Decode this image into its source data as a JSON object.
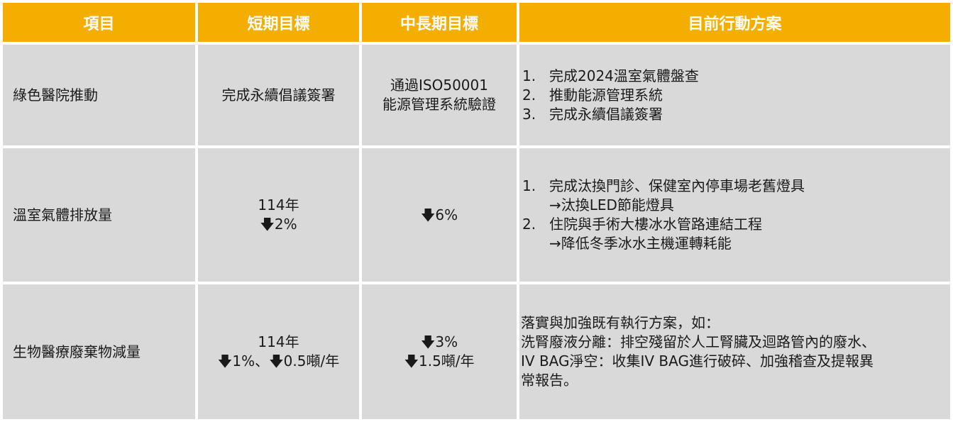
{
  "headers": [
    "項目",
    "短期目標",
    "中長期目標",
    "目前行動方案"
  ],
  "rows": [
    {
      "item": "綠色醫院推動",
      "short": [
        "完成永續倡議簽署"
      ],
      "mid": [
        "通過ISO50001",
        "能源管理系統驗證"
      ],
      "actions": [
        {
          "num": "1.",
          "text": "完成2024溫室氣體盤查"
        },
        {
          "num": "2.",
          "text": "推動能源管理系統"
        },
        {
          "num": "3.",
          "text": "完成永續倡議簽署"
        }
      ]
    },
    {
      "item": "溫室氣體排放量",
      "short": [
        "114年",
        "🡇2%"
      ],
      "mid": [
        "🡇6%"
      ],
      "actions": [
        {
          "num": "1.",
          "text": "完成汰換門診、保健室內停車場老舊燈具",
          "sub": "→汰換LED節能燈具"
        },
        {
          "num": "2.",
          "text": "住院與手術大樓冰水管路連結工程",
          "sub": "→降低冬季冰水主機運轉耗能"
        }
      ]
    },
    {
      "item": "生物醫療廢棄物減量",
      "short": [
        "114年",
        "🡇1%、🡇0.5噸/年"
      ],
      "mid": [
        "🡇3%",
        "🡇1.5噸/年"
      ],
      "paragraph": [
        "落實與加強既有執行方案，如：",
        "洗腎廢液分離：排空殘留於人工腎臟及迴路管內的廢水、",
        "IV BAG淨空：收集IV BAG進行破碎、加強稽查及提報異",
        "常報告。"
      ]
    }
  ]
}
